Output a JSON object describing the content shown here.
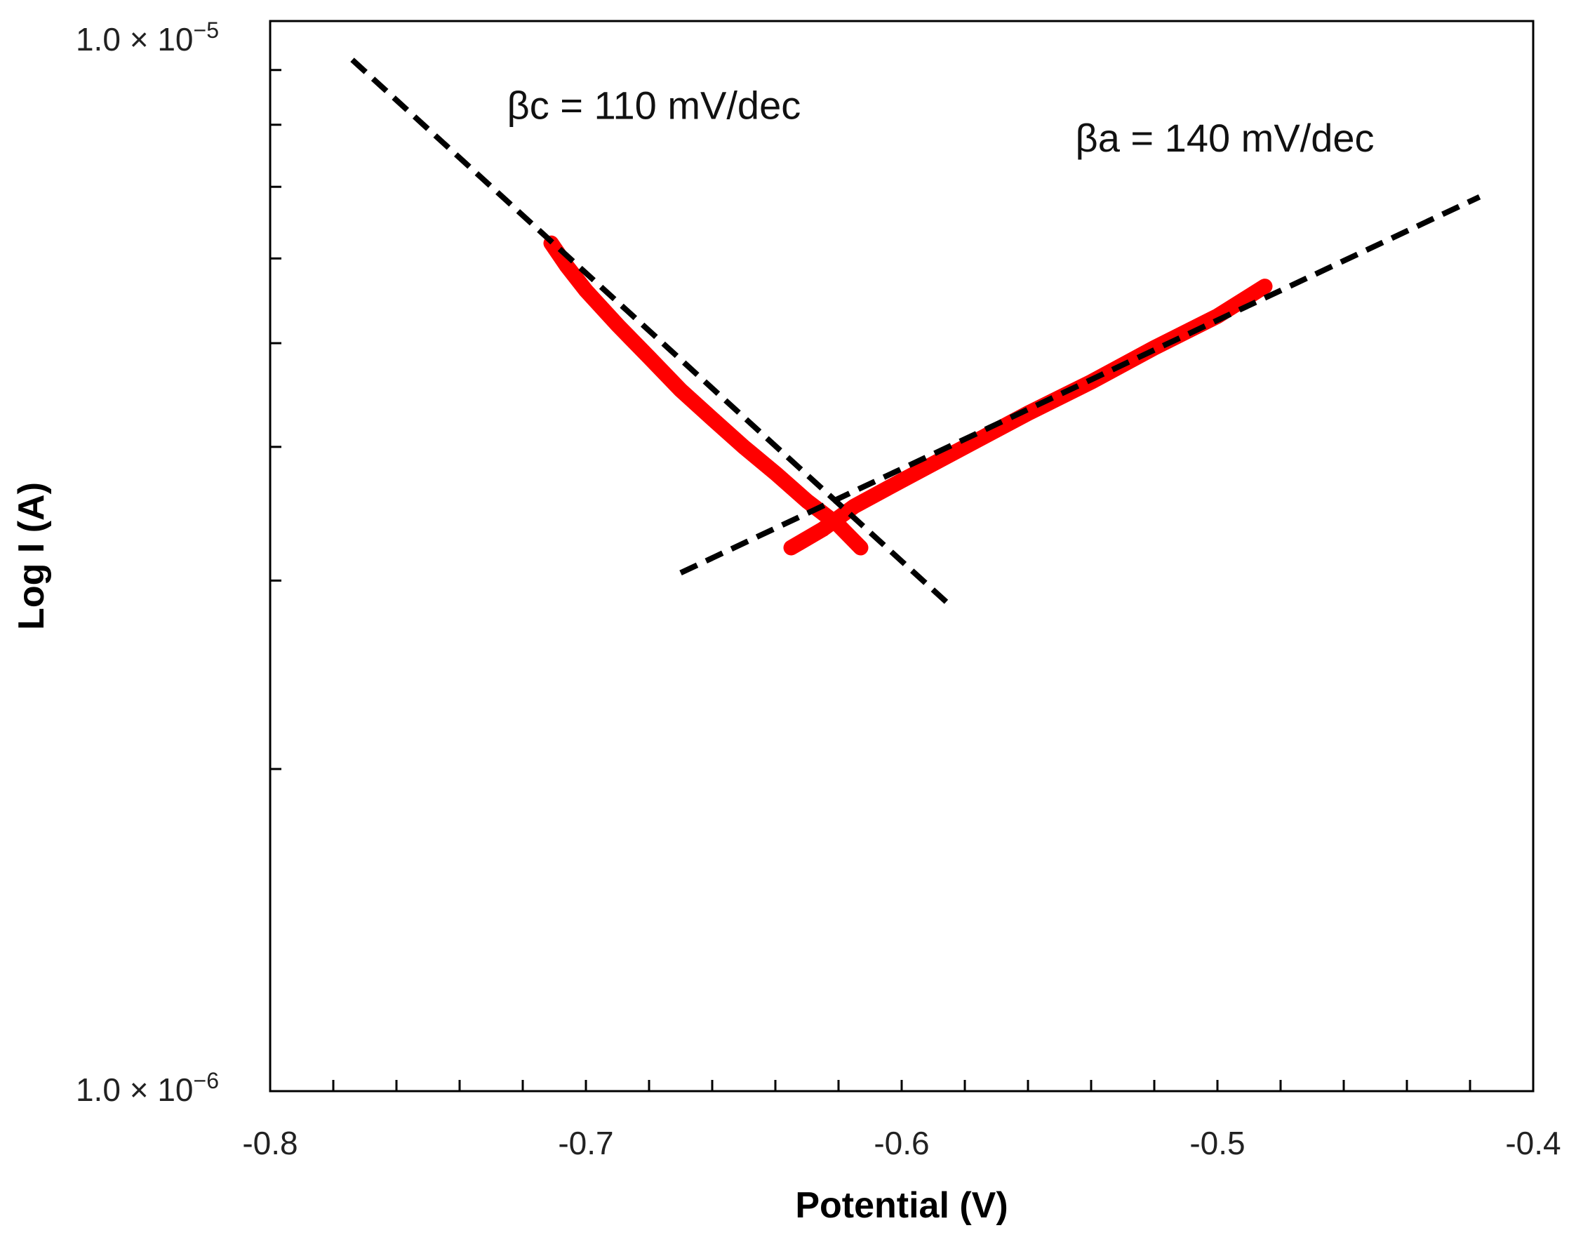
{
  "chart_data": {
    "type": "line",
    "title": "",
    "xlabel": "Potential (V)",
    "ylabel": "Log I (A)",
    "xlim": [
      -0.8,
      -0.4
    ],
    "ylim": [
      1e-06,
      1e-05
    ],
    "yscale": "log",
    "x_ticks": [
      -0.8,
      -0.7,
      -0.6,
      -0.5,
      -0.4
    ],
    "x_tick_labels": [
      "-0.8",
      "-0.7",
      "-0.6",
      "-0.5",
      "-0.4"
    ],
    "y_tick_labels": [
      {
        "value": 1e-05,
        "mantissa": "1.0 × 10",
        "exponent": "−5"
      },
      {
        "value": 1e-06,
        "mantissa": "1.0 × 10",
        "exponent": "−6"
      }
    ],
    "y_minor_ticks": [
      2e-06,
      3e-06,
      4e-06,
      5e-06,
      6e-06,
      7e-06,
      8e-06,
      9e-06
    ],
    "series": [
      {
        "name": "cathodic branch",
        "color": "#ff0000",
        "x": [
          -0.711,
          -0.706,
          -0.7,
          -0.69,
          -0.68,
          -0.67,
          -0.66,
          -0.65,
          -0.64,
          -0.63,
          -0.62,
          -0.613
        ],
        "y": [
          6.2e-06,
          5.9e-06,
          5.6e-06,
          5.2e-06,
          4.85e-06,
          4.52e-06,
          4.25e-06,
          4e-06,
          3.78e-06,
          3.56e-06,
          3.38e-06,
          3.22e-06
        ]
      },
      {
        "name": "anodic branch",
        "color": "#ff0000",
        "x": [
          -0.635,
          -0.625,
          -0.615,
          -0.6,
          -0.58,
          -0.56,
          -0.54,
          -0.52,
          -0.5,
          -0.485
        ],
        "y": [
          3.22e-06,
          3.35e-06,
          3.52e-06,
          3.72e-06,
          4e-06,
          4.3e-06,
          4.6e-06,
          4.95e-06,
          5.3e-06,
          5.65e-06
        ]
      },
      {
        "name": "cathodic Tafel fit",
        "color": "#000000",
        "style": "dashed",
        "x": [
          -0.774,
          -0.585
        ],
        "y": [
          9.2e-06,
          2.85e-06
        ]
      },
      {
        "name": "anodic Tafel fit",
        "color": "#000000",
        "style": "dashed",
        "x": [
          -0.67,
          -0.417
        ],
        "y": [
          3.05e-06,
          6.85e-06
        ]
      }
    ],
    "annotations": [
      {
        "text": "βc = 110 mV/dec",
        "x": -0.725,
        "y": 8.1e-06
      },
      {
        "text": "βa = 140 mV/dec",
        "x": -0.545,
        "y": 7.55e-06
      }
    ],
    "grid": false,
    "legend": "none"
  }
}
